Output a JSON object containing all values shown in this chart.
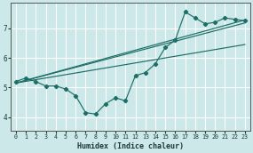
{
  "xlabel": "Humidex (Indice chaleur)",
  "bg_color": "#cce8e8",
  "grid_color": "#ffffff",
  "line_color": "#1e6e68",
  "xticks": [
    0,
    1,
    2,
    3,
    4,
    5,
    6,
    7,
    8,
    9,
    10,
    11,
    12,
    13,
    14,
    15,
    16,
    17,
    18,
    19,
    20,
    21,
    22,
    23
  ],
  "yticks": [
    4,
    5,
    6,
    7
  ],
  "xlim": [
    -0.5,
    23.5
  ],
  "ylim": [
    3.55,
    7.85
  ],
  "line1_x": [
    0,
    1,
    2,
    3,
    4,
    5,
    6,
    7,
    8,
    9,
    10,
    11,
    12,
    13,
    14,
    15,
    16,
    17,
    18,
    19,
    20,
    21,
    22,
    23
  ],
  "line1_y": [
    5.2,
    5.32,
    5.2,
    5.05,
    5.05,
    4.95,
    4.72,
    4.15,
    4.1,
    4.45,
    4.65,
    4.55,
    5.4,
    5.5,
    5.8,
    6.35,
    6.6,
    7.55,
    7.35,
    7.15,
    7.2,
    7.35,
    7.3,
    7.25
  ],
  "line2_x": [
    0,
    23
  ],
  "line2_y": [
    5.15,
    7.28
  ],
  "line3_x": [
    0,
    23
  ],
  "line3_y": [
    5.15,
    7.18
  ],
  "line4_x": [
    0,
    23
  ],
  "line4_y": [
    5.15,
    6.45
  ]
}
